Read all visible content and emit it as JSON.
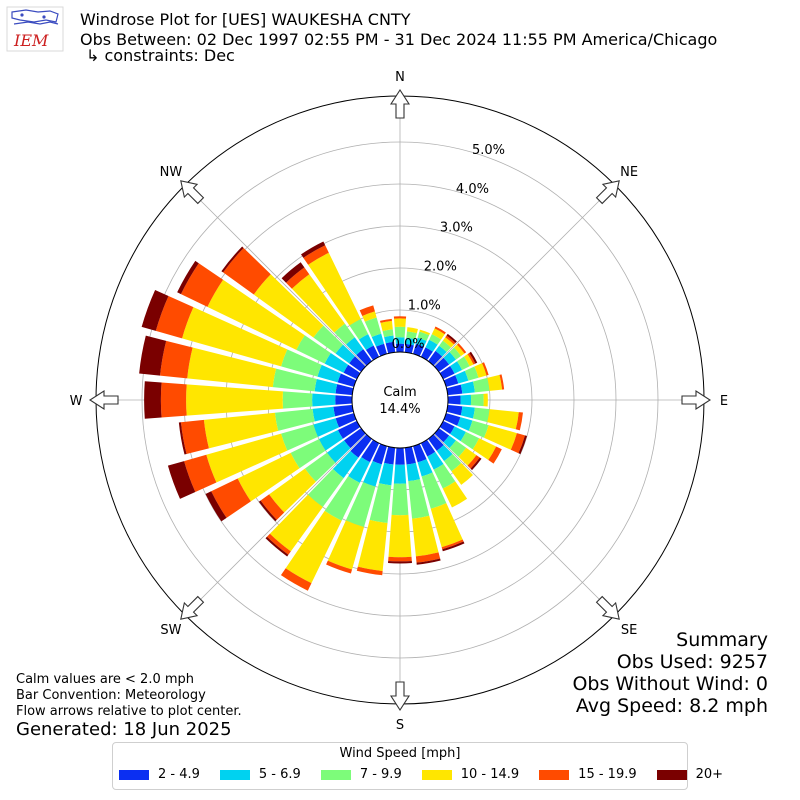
{
  "header": {
    "title": "Windrose Plot for [UES] WAUKESHA CNTY",
    "obs_between": "Obs Between: 02 Dec 1997 02:55 PM - 31 Dec 2024 11:55 PM America/Chicago",
    "constraints": "↳ constraints: Dec",
    "logo_text": "IEM"
  },
  "notes": {
    "calm_note": "Calm values are < 2.0 mph",
    "bar_convention": "Bar Convention: Meteorology",
    "flow_note": "Flow arrows relative to plot center.",
    "generated": "Generated: 18 Jun 2025"
  },
  "summary": {
    "title": "Summary",
    "obs_used": "Obs Used: 9257",
    "obs_without_wind": "Obs Without Wind: 0",
    "avg_speed": "Avg Speed: 8.2 mph"
  },
  "legend": {
    "title": "Wind Speed [mph]"
  },
  "chart_data": {
    "type": "windrose",
    "title": "Windrose Plot for [UES] WAUKESHA CNTY",
    "calm": {
      "label": "Calm",
      "value_text": "14.4%",
      "value": 14.4
    },
    "compass_labels": [
      {
        "label": "N",
        "angle_deg": 0
      },
      {
        "label": "NE",
        "angle_deg": 45
      },
      {
        "label": "E",
        "angle_deg": 90
      },
      {
        "label": "SE",
        "angle_deg": 135
      },
      {
        "label": "S",
        "angle_deg": 180
      },
      {
        "label": "SW",
        "angle_deg": 225
      },
      {
        "label": "W",
        "angle_deg": 270
      },
      {
        "label": "NW",
        "angle_deg": 315
      }
    ],
    "radial_ticks": [
      "0.0%",
      "1.0%",
      "2.0%",
      "3.0%",
      "4.0%",
      "5.0%"
    ],
    "radial_tick_values": [
      0,
      1,
      2,
      3,
      4,
      5
    ],
    "rmax": 6.0,
    "grid": true,
    "legend_position": "bottom",
    "bins": [
      {
        "label": "2 - 4.9",
        "color": "#0b2ff2"
      },
      {
        "label": "5 - 6.9",
        "color": "#00d2f0"
      },
      {
        "label": "7 - 9.9",
        "color": "#7dfc7a"
      },
      {
        "label": "10 - 14.9",
        "color": "#ffe600"
      },
      {
        "label": "15 - 19.9",
        "color": "#ff4b00"
      },
      {
        "label": "20+",
        "color": "#7a0000"
      }
    ],
    "sectors": [
      {
        "dir_deg": 0,
        "values": [
          0.2,
          0.15,
          0.25,
          0.2,
          0.05,
          0.0
        ]
      },
      {
        "dir_deg": 10,
        "values": [
          0.2,
          0.15,
          0.15,
          0.1,
          0.0,
          0.0
        ]
      },
      {
        "dir_deg": 20,
        "values": [
          0.25,
          0.15,
          0.15,
          0.05,
          0.0,
          0.0
        ]
      },
      {
        "dir_deg": 30,
        "values": [
          0.25,
          0.2,
          0.15,
          0.15,
          0.05,
          0.0
        ]
      },
      {
        "dir_deg": 40,
        "values": [
          0.3,
          0.15,
          0.15,
          0.1,
          0.05,
          0.05
        ]
      },
      {
        "dir_deg": 50,
        "values": [
          0.3,
          0.2,
          0.15,
          0.1,
          0.05,
          0.0
        ]
      },
      {
        "dir_deg": 60,
        "values": [
          0.3,
          0.2,
          0.2,
          0.1,
          0.05,
          0.05
        ]
      },
      {
        "dir_deg": 70,
        "values": [
          0.3,
          0.25,
          0.25,
          0.2,
          0.05,
          0.0
        ]
      },
      {
        "dir_deg": 80,
        "values": [
          0.35,
          0.3,
          0.35,
          0.3,
          0.05,
          0.0
        ]
      },
      {
        "dir_deg": 90,
        "values": [
          0.3,
          0.25,
          0.3,
          0.1,
          0.0,
          0.0
        ]
      },
      {
        "dir_deg": 100,
        "values": [
          0.35,
          0.3,
          0.35,
          0.7,
          0.1,
          0.0
        ]
      },
      {
        "dir_deg": 110,
        "values": [
          0.35,
          0.3,
          0.4,
          0.7,
          0.2,
          0.05
        ]
      },
      {
        "dir_deg": 120,
        "values": [
          0.3,
          0.3,
          0.35,
          0.45,
          0.15,
          0.0
        ]
      },
      {
        "dir_deg": 130,
        "values": [
          0.3,
          0.2,
          0.3,
          0.3,
          0.1,
          0.05
        ]
      },
      {
        "dir_deg": 140,
        "values": [
          0.35,
          0.3,
          0.3,
          0.4,
          0.0,
          0.0
        ]
      },
      {
        "dir_deg": 150,
        "values": [
          0.35,
          0.35,
          0.5,
          0.5,
          0.0,
          0.0
        ]
      },
      {
        "dir_deg": 160,
        "values": [
          0.4,
          0.35,
          0.8,
          0.95,
          0.05,
          0.05
        ]
      },
      {
        "dir_deg": 170,
        "values": [
          0.4,
          0.4,
          0.9,
          0.9,
          0.15,
          0.05
        ]
      },
      {
        "dir_deg": 180,
        "values": [
          0.4,
          0.45,
          0.75,
          1.0,
          0.1,
          0.05
        ]
      },
      {
        "dir_deg": 190,
        "values": [
          0.4,
          0.5,
          0.9,
          1.15,
          0.1,
          0.0
        ]
      },
      {
        "dir_deg": 200,
        "values": [
          0.45,
          0.55,
          1.0,
          1.05,
          0.1,
          0.0
        ]
      },
      {
        "dir_deg": 210,
        "values": [
          0.5,
          0.55,
          1.0,
          1.65,
          0.2,
          0.0
        ]
      },
      {
        "dir_deg": 220,
        "values": [
          0.55,
          0.6,
          0.85,
          1.3,
          0.1,
          0.05
        ]
      },
      {
        "dir_deg": 230,
        "values": [
          0.5,
          0.5,
          0.65,
          1.05,
          0.25,
          0.05
        ]
      },
      {
        "dir_deg": 240,
        "values": [
          0.5,
          0.5,
          0.75,
          1.4,
          0.7,
          0.15
        ]
      },
      {
        "dir_deg": 250,
        "values": [
          0.45,
          0.55,
          0.8,
          1.85,
          0.55,
          0.4
        ]
      },
      {
        "dir_deg": 260,
        "values": [
          0.45,
          0.5,
          0.9,
          1.7,
          0.55,
          0.05
        ]
      },
      {
        "dir_deg": 270,
        "values": [
          0.4,
          0.55,
          0.7,
          2.3,
          0.6,
          0.4
        ]
      },
      {
        "dir_deg": 280,
        "values": [
          0.4,
          0.5,
          1.0,
          2.05,
          0.65,
          0.5
        ]
      },
      {
        "dir_deg": 290,
        "values": [
          0.4,
          0.5,
          0.9,
          2.45,
          0.65,
          0.35
        ]
      },
      {
        "dir_deg": 300,
        "values": [
          0.35,
          0.5,
          0.75,
          2.35,
          0.7,
          0.1
        ]
      },
      {
        "dir_deg": 310,
        "values": [
          0.35,
          0.4,
          0.65,
          1.75,
          0.9,
          0.05
        ]
      },
      {
        "dir_deg": 320,
        "values": [
          0.35,
          0.35,
          0.4,
          1.45,
          0.2,
          0.15
        ]
      },
      {
        "dir_deg": 330,
        "values": [
          0.3,
          0.3,
          0.4,
          1.75,
          0.2,
          0.1
        ]
      },
      {
        "dir_deg": 340,
        "values": [
          0.25,
          0.25,
          0.4,
          0.15,
          0.15,
          0.0
        ]
      },
      {
        "dir_deg": 350,
        "values": [
          0.25,
          0.15,
          0.15,
          0.2,
          0.05,
          0.0
        ]
      }
    ]
  }
}
